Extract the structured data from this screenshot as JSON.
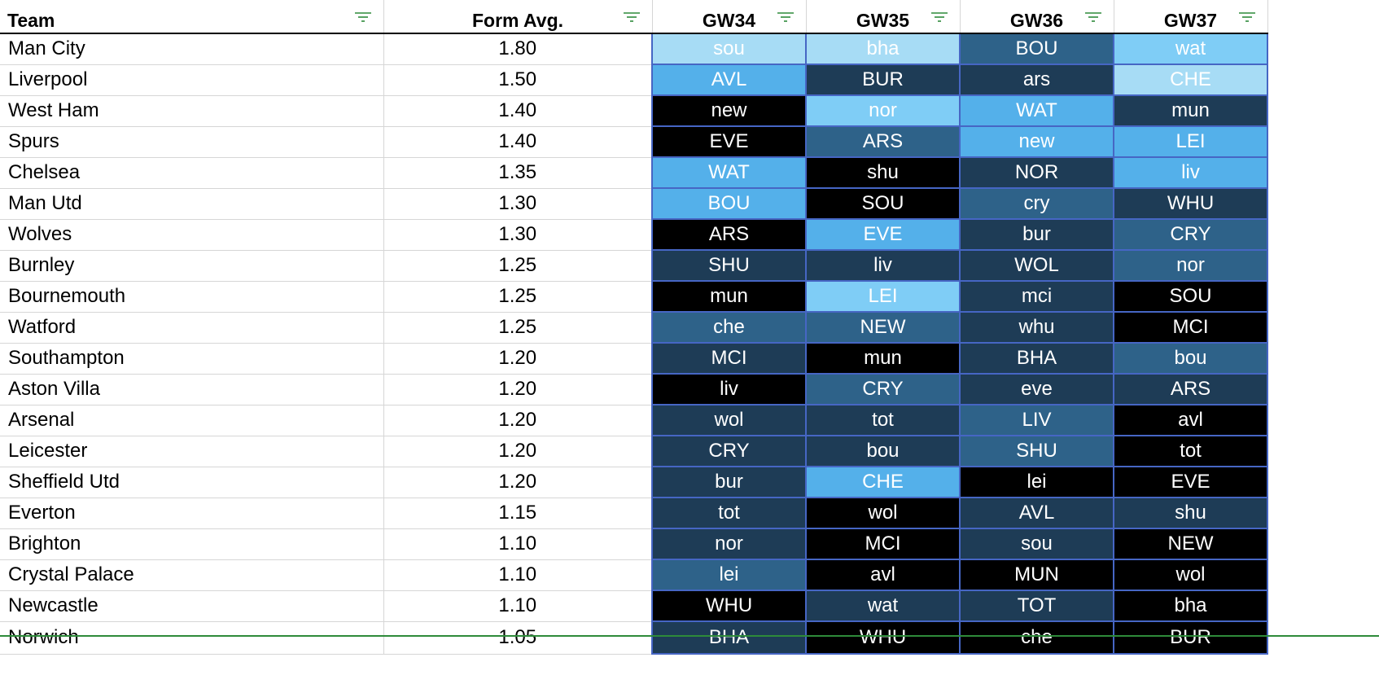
{
  "colors": {
    "very_easy": "#a7dcf5",
    "easy_plus": "#7fcdf6",
    "easy": "#54b0ea",
    "medium": "#2e6289",
    "hard": "#1e3c56",
    "very_hard": "#000000",
    "cell_border": "#4666c4",
    "filter_icon": "#2e8b3a"
  },
  "header": {
    "team": "Team",
    "form": "Form Avg.",
    "gw": [
      "GW34",
      "GW35",
      "GW36",
      "GW37"
    ]
  },
  "rows": [
    {
      "team": "Man City",
      "form": "1.80",
      "fixtures": [
        [
          "sou",
          "very_easy"
        ],
        [
          "bha",
          "very_easy"
        ],
        [
          "BOU",
          "medium"
        ],
        [
          "wat",
          "easy_plus"
        ]
      ]
    },
    {
      "team": "Liverpool",
      "form": "1.50",
      "fixtures": [
        [
          "AVL",
          "easy"
        ],
        [
          "BUR",
          "hard"
        ],
        [
          "ars",
          "hard"
        ],
        [
          "CHE",
          "very_easy"
        ]
      ]
    },
    {
      "team": "West Ham",
      "form": "1.40",
      "fixtures": [
        [
          "new",
          "very_hard"
        ],
        [
          "nor",
          "easy_plus"
        ],
        [
          "WAT",
          "easy"
        ],
        [
          "mun",
          "hard"
        ]
      ]
    },
    {
      "team": "Spurs",
      "form": "1.40",
      "fixtures": [
        [
          "EVE",
          "very_hard"
        ],
        [
          "ARS",
          "medium"
        ],
        [
          "new",
          "easy"
        ],
        [
          "LEI",
          "easy"
        ]
      ]
    },
    {
      "team": "Chelsea",
      "form": "1.35",
      "fixtures": [
        [
          "WAT",
          "easy"
        ],
        [
          "shu",
          "very_hard"
        ],
        [
          "NOR",
          "hard"
        ],
        [
          "liv",
          "easy"
        ]
      ]
    },
    {
      "team": "Man Utd",
      "form": "1.30",
      "fixtures": [
        [
          "BOU",
          "easy"
        ],
        [
          "SOU",
          "very_hard"
        ],
        [
          "cry",
          "medium"
        ],
        [
          "WHU",
          "hard"
        ]
      ]
    },
    {
      "team": "Wolves",
      "form": "1.30",
      "fixtures": [
        [
          "ARS",
          "very_hard"
        ],
        [
          "EVE",
          "easy"
        ],
        [
          "bur",
          "hard"
        ],
        [
          "CRY",
          "medium"
        ]
      ]
    },
    {
      "team": "Burnley",
      "form": "1.25",
      "fixtures": [
        [
          "SHU",
          "hard"
        ],
        [
          "liv",
          "hard"
        ],
        [
          "WOL",
          "hard"
        ],
        [
          "nor",
          "medium"
        ]
      ]
    },
    {
      "team": "Bournemouth",
      "form": "1.25",
      "fixtures": [
        [
          "mun",
          "very_hard"
        ],
        [
          "LEI",
          "easy_plus"
        ],
        [
          "mci",
          "hard"
        ],
        [
          "SOU",
          "very_hard"
        ]
      ]
    },
    {
      "team": "Watford",
      "form": "1.25",
      "fixtures": [
        [
          "che",
          "medium"
        ],
        [
          "NEW",
          "medium"
        ],
        [
          "whu",
          "hard"
        ],
        [
          "MCI",
          "very_hard"
        ]
      ]
    },
    {
      "team": "Southampton",
      "form": "1.20",
      "fixtures": [
        [
          "MCI",
          "hard"
        ],
        [
          "mun",
          "very_hard"
        ],
        [
          "BHA",
          "hard"
        ],
        [
          "bou",
          "medium"
        ]
      ]
    },
    {
      "team": "Aston Villa",
      "form": "1.20",
      "fixtures": [
        [
          "liv",
          "very_hard"
        ],
        [
          "CRY",
          "medium"
        ],
        [
          "eve",
          "hard"
        ],
        [
          "ARS",
          "hard"
        ]
      ]
    },
    {
      "team": "Arsenal",
      "form": "1.20",
      "fixtures": [
        [
          "wol",
          "hard"
        ],
        [
          "tot",
          "hard"
        ],
        [
          "LIV",
          "medium"
        ],
        [
          "avl",
          "very_hard"
        ]
      ]
    },
    {
      "team": "Leicester",
      "form": "1.20",
      "fixtures": [
        [
          "CRY",
          "hard"
        ],
        [
          "bou",
          "hard"
        ],
        [
          "SHU",
          "medium"
        ],
        [
          "tot",
          "very_hard"
        ]
      ]
    },
    {
      "team": "Sheffield Utd",
      "form": "1.20",
      "fixtures": [
        [
          "bur",
          "hard"
        ],
        [
          "CHE",
          "easy"
        ],
        [
          "lei",
          "very_hard"
        ],
        [
          "EVE",
          "very_hard"
        ]
      ]
    },
    {
      "team": "Everton",
      "form": "1.15",
      "fixtures": [
        [
          "tot",
          "hard"
        ],
        [
          "wol",
          "very_hard"
        ],
        [
          "AVL",
          "hard"
        ],
        [
          "shu",
          "hard"
        ]
      ]
    },
    {
      "team": "Brighton",
      "form": "1.10",
      "fixtures": [
        [
          "nor",
          "hard"
        ],
        [
          "MCI",
          "very_hard"
        ],
        [
          "sou",
          "hard"
        ],
        [
          "NEW",
          "very_hard"
        ]
      ]
    },
    {
      "team": "Crystal Palace",
      "form": "1.10",
      "fixtures": [
        [
          "lei",
          "medium"
        ],
        [
          "avl",
          "very_hard"
        ],
        [
          "MUN",
          "very_hard"
        ],
        [
          "wol",
          "very_hard"
        ]
      ]
    },
    {
      "team": "Newcastle",
      "form": "1.10",
      "fixtures": [
        [
          "WHU",
          "very_hard"
        ],
        [
          "wat",
          "hard"
        ],
        [
          "TOT",
          "hard"
        ],
        [
          "bha",
          "very_hard"
        ]
      ]
    },
    {
      "team": "Norwich",
      "form": "1.05",
      "fixtures": [
        [
          "BHA",
          "hard"
        ],
        [
          "WHU",
          "very_hard"
        ],
        [
          "che",
          "very_hard"
        ],
        [
          "BUR",
          "very_hard"
        ]
      ]
    }
  ]
}
